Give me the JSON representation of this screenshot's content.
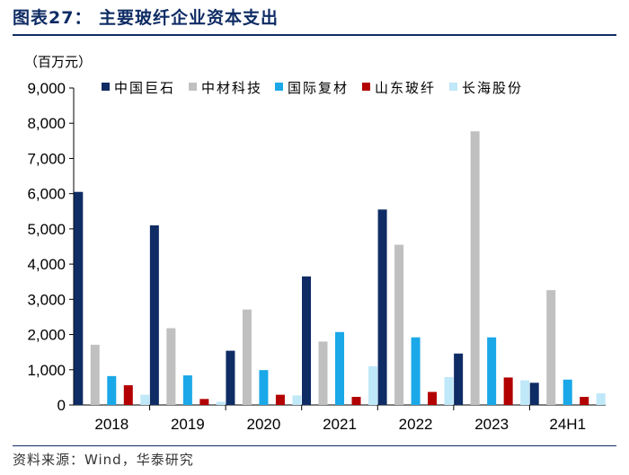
{
  "figure": {
    "title": "图表27：  主要玻纤企业资本支出",
    "source": "资料来源：Wind，华泰研究"
  },
  "chart_data": {
    "type": "bar",
    "unit_label": "（百万元）",
    "categories": [
      "2018",
      "2019",
      "2020",
      "2021",
      "2022",
      "2023",
      "24H1"
    ],
    "ylim": [
      0,
      9000
    ],
    "yticks": [
      0,
      1000,
      2000,
      3000,
      4000,
      5000,
      6000,
      7000,
      8000,
      9000
    ],
    "ytick_labels": [
      "0",
      "1,000",
      "2,000",
      "3,000",
      "4,000",
      "5,000",
      "6,000",
      "7,000",
      "8,000",
      "9,000"
    ],
    "legend_position": "top",
    "series": [
      {
        "name": "中国巨石",
        "color": "#0f2c64",
        "values": [
          6050,
          5100,
          1540,
          3650,
          5550,
          1460,
          630
        ]
      },
      {
        "name": "中材科技",
        "color": "#c0c0c0",
        "values": [
          1710,
          2180,
          2710,
          1800,
          4550,
          7770,
          3260
        ]
      },
      {
        "name": "国际复材",
        "color": "#1aa8e8",
        "values": [
          820,
          840,
          990,
          2070,
          1920,
          1920,
          720
        ]
      },
      {
        "name": "山东玻纤",
        "color": "#b30000",
        "values": [
          560,
          170,
          290,
          230,
          370,
          780,
          230
        ]
      },
      {
        "name": "长海股份",
        "color": "#bfe8f8",
        "values": [
          290,
          90,
          270,
          1100,
          790,
          700,
          330
        ]
      }
    ]
  }
}
